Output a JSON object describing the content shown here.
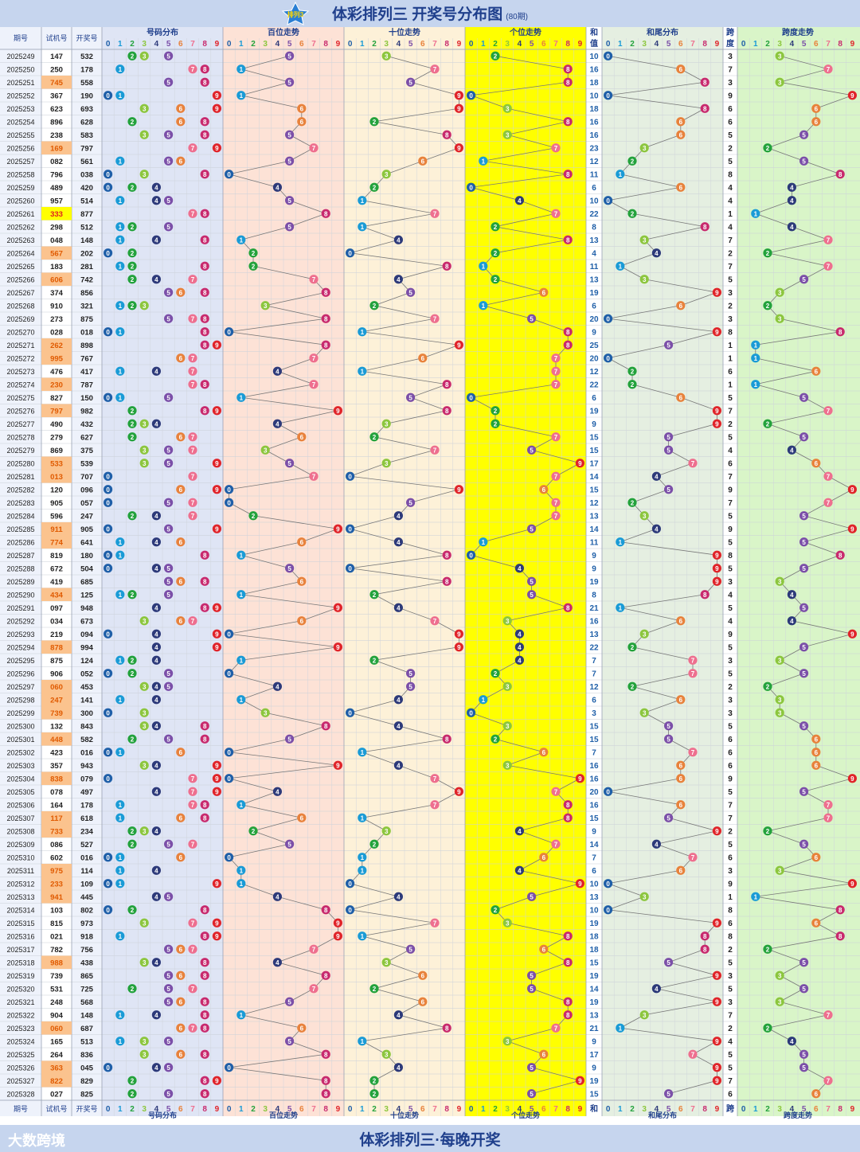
{
  "title": "体彩排列三 开奖号分布图",
  "subtitle": "(80期)",
  "logo_text": "排列3",
  "footer_text": "体彩排列三·每晚开奖",
  "brand": "大数跨境",
  "headers": {
    "issue": "期号",
    "trial": "试机号",
    "draw": "开奖号",
    "dist": "号码分布",
    "hundreds": "百位走势",
    "tens": "十位走势",
    "units": "个位走势",
    "sum_top": "和",
    "sum_bottom": "值",
    "tail": "和尾分布",
    "span_top": "跨",
    "span_bottom": "度",
    "span_trend": "跨度走势"
  },
  "digits": [
    "0",
    "1",
    "2",
    "3",
    "4",
    "5",
    "6",
    "7",
    "8",
    "9"
  ],
  "colors": {
    "digit": [
      "#1f5fa8",
      "#1a9bd6",
      "#23a23c",
      "#8cc63e",
      "#2d3a7a",
      "#7b4fa8",
      "#e8823c",
      "#ee6f8f",
      "#c82a6e",
      "#e0242a"
    ],
    "header_text": "#1f3f8c",
    "highlight_trial": "#ffd966",
    "highlight_equal": "#ffff00",
    "units_bg": "#ffff00"
  },
  "chart_data": {
    "type": "table",
    "columns": [
      "期号",
      "试机号",
      "开奖号",
      "和值",
      "跨度"
    ],
    "rows": [
      [
        "2025249",
        "147",
        "532",
        10,
        3
      ],
      [
        "2025250",
        "250",
        "178",
        16,
        7
      ],
      [
        "2025251",
        "745",
        "558",
        18,
        3
      ],
      [
        "2025252",
        "367",
        "190",
        10,
        9
      ],
      [
        "2025253",
        "623",
        "693",
        18,
        6
      ],
      [
        "2025254",
        "896",
        "628",
        16,
        6
      ],
      [
        "2025255",
        "238",
        "583",
        16,
        5
      ],
      [
        "2025256",
        "169",
        "797",
        23,
        2
      ],
      [
        "2025257",
        "082",
        "561",
        12,
        5
      ],
      [
        "2025258",
        "796",
        "038",
        11,
        8
      ],
      [
        "2025259",
        "489",
        "420",
        6,
        4
      ],
      [
        "2025260",
        "957",
        "514",
        10,
        4
      ],
      [
        "2025261",
        "333",
        "877",
        22,
        1
      ],
      [
        "2025262",
        "298",
        "512",
        8,
        4
      ],
      [
        "2025263",
        "048",
        "148",
        13,
        7
      ],
      [
        "2025264",
        "567",
        "202",
        4,
        2
      ],
      [
        "2025265",
        "183",
        "281",
        11,
        7
      ],
      [
        "2025266",
        "606",
        "742",
        13,
        5
      ],
      [
        "2025267",
        "374",
        "856",
        19,
        3
      ],
      [
        "2025268",
        "910",
        "321",
        6,
        2
      ],
      [
        "2025269",
        "273",
        "875",
        20,
        3
      ],
      [
        "2025270",
        "028",
        "018",
        9,
        8
      ],
      [
        "2025271",
        "262",
        "898",
        25,
        1
      ],
      [
        "2025272",
        "995",
        "767",
        20,
        1
      ],
      [
        "2025273",
        "476",
        "417",
        12,
        6
      ],
      [
        "2025274",
        "230",
        "787",
        22,
        1
      ],
      [
        "2025275",
        "827",
        "150",
        6,
        5
      ],
      [
        "2025276",
        "797",
        "982",
        19,
        7
      ],
      [
        "2025277",
        "490",
        "432",
        9,
        2
      ],
      [
        "2025278",
        "279",
        "627",
        15,
        5
      ],
      [
        "2025279",
        "869",
        "375",
        15,
        4
      ],
      [
        "2025280",
        "533",
        "539",
        17,
        6
      ],
      [
        "2025281",
        "013",
        "707",
        14,
        7
      ],
      [
        "2025282",
        "120",
        "096",
        15,
        9
      ],
      [
        "2025283",
        "905",
        "057",
        12,
        7
      ],
      [
        "2025284",
        "596",
        "247",
        13,
        5
      ],
      [
        "2025285",
        "911",
        "905",
        14,
        9
      ],
      [
        "2025286",
        "774",
        "641",
        11,
        5
      ],
      [
        "2025287",
        "819",
        "180",
        9,
        8
      ],
      [
        "2025288",
        "672",
        "504",
        9,
        5
      ],
      [
        "2025289",
        "419",
        "685",
        19,
        3
      ],
      [
        "2025290",
        "434",
        "125",
        8,
        4
      ],
      [
        "2025291",
        "097",
        "948",
        21,
        5
      ],
      [
        "2025292",
        "034",
        "673",
        16,
        4
      ],
      [
        "2025293",
        "219",
        "094",
        13,
        9
      ],
      [
        "2025294",
        "878",
        "994",
        22,
        5
      ],
      [
        "2025295",
        "875",
        "124",
        7,
        3
      ],
      [
        "2025296",
        "906",
        "052",
        7,
        5
      ],
      [
        "2025297",
        "060",
        "453",
        12,
        2
      ],
      [
        "2025298",
        "247",
        "141",
        6,
        3
      ],
      [
        "2025299",
        "739",
        "300",
        3,
        3
      ],
      [
        "2025300",
        "132",
        "843",
        15,
        5
      ],
      [
        "2025301",
        "448",
        "582",
        15,
        6
      ],
      [
        "2025302",
        "423",
        "016",
        7,
        6
      ],
      [
        "2025303",
        "357",
        "943",
        16,
        6
      ],
      [
        "2025304",
        "838",
        "079",
        16,
        9
      ],
      [
        "2025305",
        "078",
        "497",
        20,
        5
      ],
      [
        "2025306",
        "164",
        "178",
        16,
        7
      ],
      [
        "2025307",
        "117",
        "618",
        15,
        7
      ],
      [
        "2025308",
        "733",
        "234",
        9,
        2
      ],
      [
        "2025309",
        "086",
        "527",
        14,
        5
      ],
      [
        "2025310",
        "602",
        "016",
        7,
        6
      ],
      [
        "2025311",
        "975",
        "114",
        6,
        3
      ],
      [
        "2025312",
        "233",
        "109",
        10,
        9
      ],
      [
        "2025313",
        "941",
        "445",
        13,
        1
      ],
      [
        "2025314",
        "103",
        "802",
        10,
        8
      ],
      [
        "2025315",
        "815",
        "973",
        19,
        6
      ],
      [
        "2025316",
        "021",
        "918",
        18,
        8
      ],
      [
        "2025317",
        "782",
        "756",
        18,
        2
      ],
      [
        "2025318",
        "988",
        "438",
        15,
        5
      ],
      [
        "2025319",
        "739",
        "865",
        19,
        3
      ],
      [
        "2025320",
        "531",
        "725",
        14,
        5
      ],
      [
        "2025321",
        "248",
        "568",
        19,
        3
      ],
      [
        "2025322",
        "904",
        "148",
        13,
        7
      ],
      [
        "2025323",
        "060",
        "687",
        21,
        2
      ],
      [
        "2025324",
        "165",
        "513",
        9,
        4
      ],
      [
        "2025325",
        "264",
        "836",
        17,
        5
      ],
      [
        "2025326",
        "363",
        "045",
        9,
        5
      ],
      [
        "2025327",
        "822",
        "829",
        19,
        7
      ],
      [
        "2025328",
        "027",
        "825",
        15,
        6
      ]
    ],
    "highlight_trial_equal": [
      "2025261"
    ],
    "highlight_trial_hit": [
      "2025251",
      "2025256",
      "2025264",
      "2025266",
      "2025271",
      "2025272",
      "2025274",
      "2025276",
      "2025280",
      "2025281",
      "2025285",
      "2025286",
      "2025290",
      "2025294",
      "2025297",
      "2025298",
      "2025299",
      "2025301",
      "2025304",
      "2025307",
      "2025308",
      "2025311",
      "2025312",
      "2025313",
      "2025318",
      "2025323",
      "2025326",
      "2025327"
    ]
  }
}
